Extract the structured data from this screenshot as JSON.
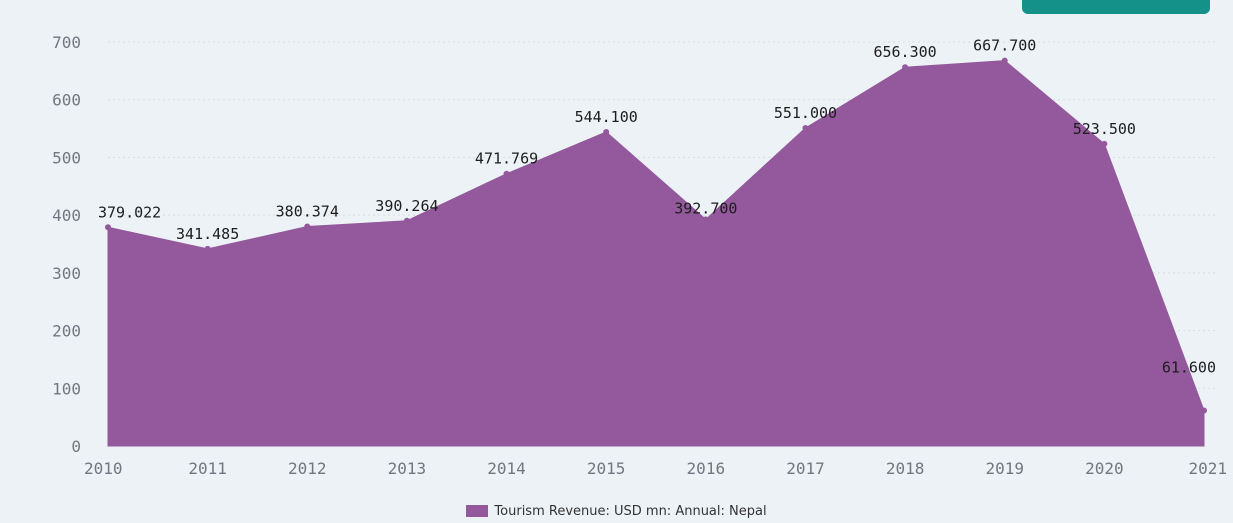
{
  "colors": {
    "area": "#93599c",
    "grid": "#d8dde2",
    "background": "#edf2f6",
    "corner_button": "#14928a"
  },
  "corner_button": {
    "icon": "unlabeled-button"
  },
  "legend": {
    "label": "Tourism Revenue: USD mn: Annual: Nepal"
  },
  "chart_data": {
    "type": "area",
    "x": [
      "2010",
      "2011",
      "2012",
      "2013",
      "2014",
      "2015",
      "2016",
      "2017",
      "2018",
      "2019",
      "2020",
      "2021"
    ],
    "series": [
      {
        "name": "Tourism Revenue: USD mn: Annual: Nepal",
        "values": [
          379.022,
          341.485,
          380.374,
          390.264,
          471.769,
          544.1,
          392.7,
          551.0,
          656.3,
          667.7,
          523.5,
          61.6
        ],
        "labels": [
          "379.022",
          "341.485",
          "380.374",
          "390.264",
          "471.769",
          "544.100",
          "392.700",
          "551.000",
          "656.300",
          "667.700",
          "523.500",
          "61.600"
        ]
      }
    ],
    "yticks": [
      "0",
      "100",
      "200",
      "300",
      "400",
      "500",
      "600",
      "700"
    ],
    "ylim": [
      0,
      700
    ],
    "grid": true,
    "legend_position": "bottom-center"
  }
}
